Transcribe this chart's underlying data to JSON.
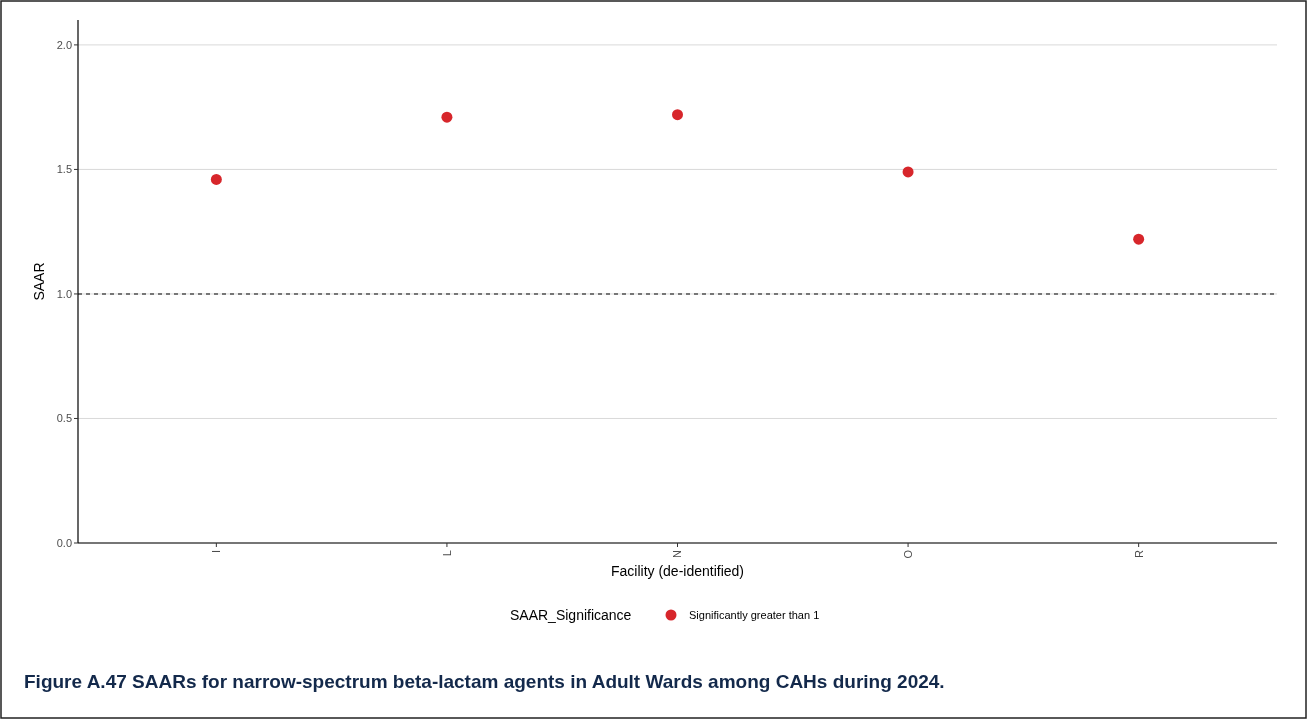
{
  "chart_data": {
    "type": "scatter",
    "title": "Figure A.47 SAARs for narrow-spectrum beta-lactam agents in Adult Wards among CAHs during 2024.",
    "xlabel": "Facility (de-identified)",
    "ylabel": "SAAR",
    "legend_title": "SAAR_Significance",
    "categories": [
      "I",
      "L",
      "N",
      "O",
      "R"
    ],
    "series": [
      {
        "name": "Significantly greater than 1",
        "color": "#d7262b",
        "values": [
          1.46,
          1.71,
          1.72,
          1.49,
          1.22
        ]
      }
    ],
    "ylim": [
      0,
      2.1
    ],
    "yticks": [
      {
        "value": 0,
        "label": "0.0"
      },
      {
        "value": 0.5,
        "label": "0.5"
      },
      {
        "value": 1,
        "label": "1.0"
      },
      {
        "value": 1.5,
        "label": "1.5"
      },
      {
        "value": 2,
        "label": "2.0"
      }
    ],
    "ref_lines": [
      {
        "axis": "y",
        "value": 1,
        "color": "#000000",
        "line_style": "dashed"
      }
    ],
    "grid": "y",
    "legend": "bottom",
    "marker": "circle"
  }
}
